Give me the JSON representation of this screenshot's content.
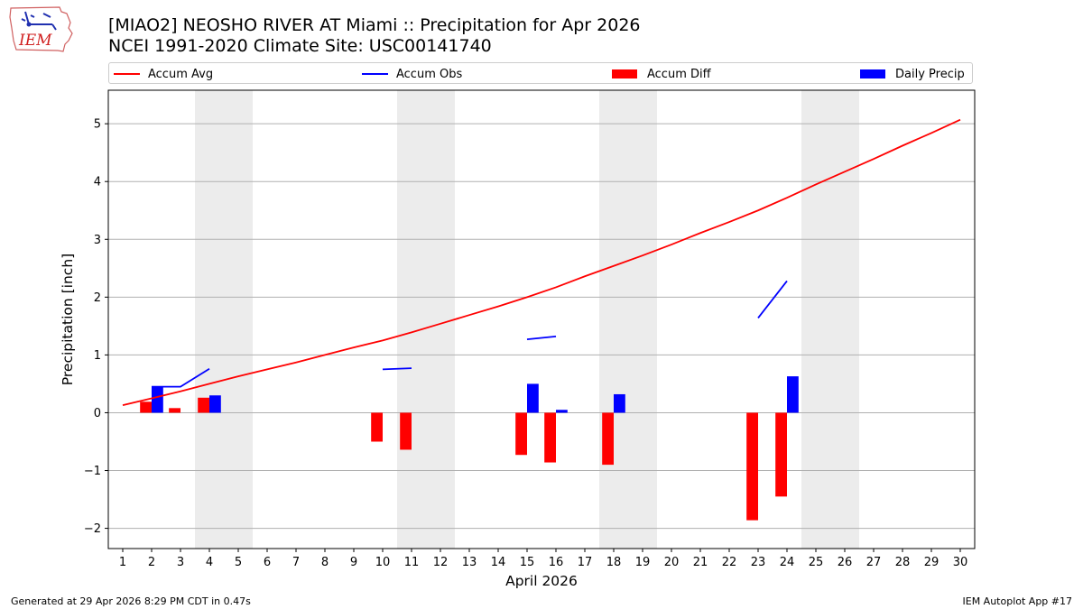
{
  "logo": {
    "text": "IEM"
  },
  "title": {
    "line1": "[MIAO2] NEOSHO RIVER  AT Miami :: Precipitation for Apr 2026",
    "line2": "NCEI 1991-2020 Climate Site: USC00141740"
  },
  "legend": {
    "accum_avg": "Accum Avg",
    "accum_obs": "Accum Obs",
    "accum_diff": "Accum Diff",
    "daily_precip": "Daily Precip"
  },
  "colors": {
    "avg": "#ff0000",
    "obs": "#0000ff",
    "diff": "#ff0000",
    "daily": "#0000ff",
    "weekend": "#ececec",
    "grid": "#b0b0b0"
  },
  "footer": {
    "left": "Generated at 29 Apr 2026 8:29 PM CDT in 0.47s",
    "right": "IEM Autoplot App #17"
  },
  "chart_data": {
    "type": "bar",
    "title": "[MIAO2] NEOSHO RIVER  AT Miami :: Precipitation for Apr 2026",
    "subtitle": "NCEI 1991-2020 Climate Site: USC00141740",
    "xlabel": "April 2026",
    "ylabel": "Precipitation [inch]",
    "xlim": [
      0.5,
      30.5
    ],
    "ylim": [
      -2.35,
      5.58
    ],
    "x_ticks": [
      1,
      2,
      3,
      4,
      5,
      6,
      7,
      8,
      9,
      10,
      11,
      12,
      13,
      14,
      15,
      16,
      17,
      18,
      19,
      20,
      21,
      22,
      23,
      24,
      25,
      26,
      27,
      28,
      29,
      30
    ],
    "y_ticks": [
      -2,
      -1,
      0,
      1,
      2,
      3,
      4,
      5
    ],
    "y_tick_labels": [
      "−2",
      "−1",
      "0",
      "1",
      "2",
      "3",
      "4",
      "5"
    ],
    "grid": true,
    "weekend_spans": [
      [
        3.5,
        5.5
      ],
      [
        10.5,
        12.5
      ],
      [
        17.5,
        19.5
      ],
      [
        24.5,
        26.5
      ]
    ],
    "legend_position": "top",
    "series": [
      {
        "name": "Accum Avg",
        "kind": "line",
        "x": [
          1,
          2,
          3,
          4,
          5,
          6,
          7,
          8,
          9,
          10,
          11,
          12,
          13,
          14,
          15,
          16,
          17,
          18,
          19,
          20,
          21,
          22,
          23,
          24,
          25,
          26,
          27,
          28,
          29,
          30
        ],
        "values": [
          0.13,
          0.25,
          0.37,
          0.5,
          0.63,
          0.75,
          0.87,
          1.0,
          1.13,
          1.25,
          1.39,
          1.54,
          1.69,
          1.84,
          2.0,
          2.17,
          2.36,
          2.54,
          2.72,
          2.91,
          3.11,
          3.3,
          3.5,
          3.72,
          3.95,
          4.17,
          4.39,
          4.62,
          4.84,
          5.07
        ]
      },
      {
        "name": "Accum Obs",
        "kind": "line",
        "x": [
          2,
          3,
          4,
          5,
          6,
          7,
          8,
          9,
          10,
          11,
          12,
          13,
          14,
          15,
          16,
          17,
          18,
          19,
          20,
          21,
          22,
          23,
          24,
          25,
          26,
          27,
          28,
          29,
          30
        ],
        "values": [
          0.45,
          0.45,
          0.76,
          null,
          null,
          null,
          null,
          null,
          0.75,
          0.77,
          null,
          null,
          null,
          1.27,
          1.32,
          null,
          null,
          null,
          null,
          null,
          null,
          1.64,
          2.28,
          null,
          null,
          null,
          null,
          null,
          null
        ]
      },
      {
        "name": "Accum Diff",
        "kind": "bar",
        "x": [
          2,
          3,
          4,
          10,
          11,
          15,
          16,
          18,
          23,
          24
        ],
        "values": [
          0.19,
          0.08,
          0.26,
          -0.5,
          -0.64,
          -0.73,
          -0.86,
          -0.9,
          -1.86,
          -1.45
        ]
      },
      {
        "name": "Daily Precip",
        "kind": "bar",
        "x": [
          2,
          4,
          15,
          16,
          18,
          24
        ],
        "values": [
          0.46,
          0.3,
          0.5,
          0.05,
          0.32,
          0.63
        ]
      }
    ]
  }
}
